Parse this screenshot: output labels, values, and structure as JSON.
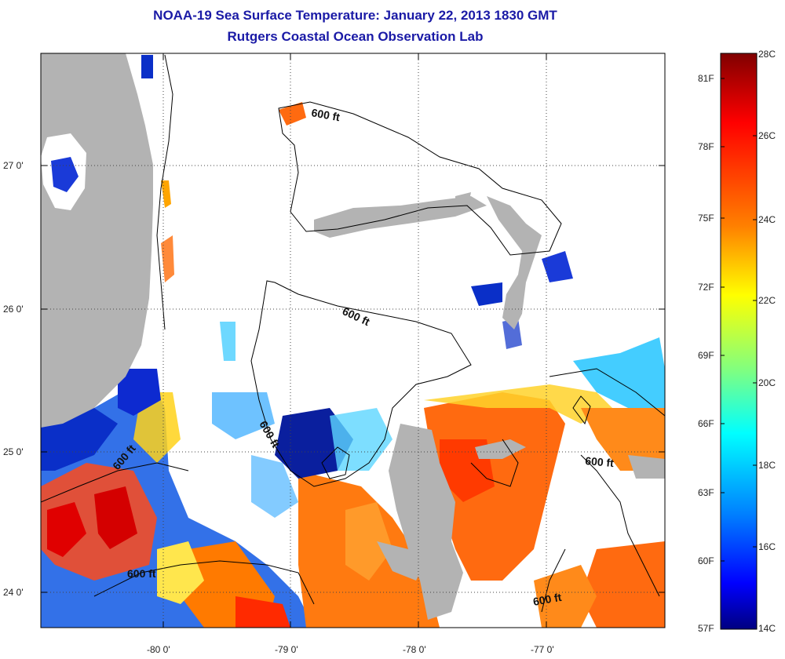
{
  "header": {
    "title": "NOAA-19 Sea Surface Temperature:  January 22, 2013 1830 GMT",
    "subtitle": "Rutgers Coastal Ocean Observation Lab"
  },
  "axes": {
    "x_ticks": [
      "-80 0'",
      "-79 0'",
      "-78 0'",
      "-77 0'"
    ],
    "y_ticks": [
      "27 0'",
      "26 0'",
      "25 0'",
      "24 0'"
    ]
  },
  "contours": {
    "label": "600 ft"
  },
  "colorbar": {
    "celsius": [
      "28C",
      "26C",
      "24C",
      "22C",
      "20C",
      "18C",
      "16C",
      "14C"
    ],
    "fahrenheit": [
      "81F",
      "78F",
      "75F",
      "72F",
      "69F",
      "66F",
      "63F",
      "60F",
      "57F"
    ],
    "colors": [
      "#800000",
      "#ff0000",
      "#ff8000",
      "#ffff00",
      "#80ff80",
      "#00ffff",
      "#0080ff",
      "#0000ff",
      "#000080"
    ]
  },
  "map": {
    "land_color": "#b3b3b3",
    "cloud_color": "#ffffff",
    "grid_style": "dotted"
  }
}
